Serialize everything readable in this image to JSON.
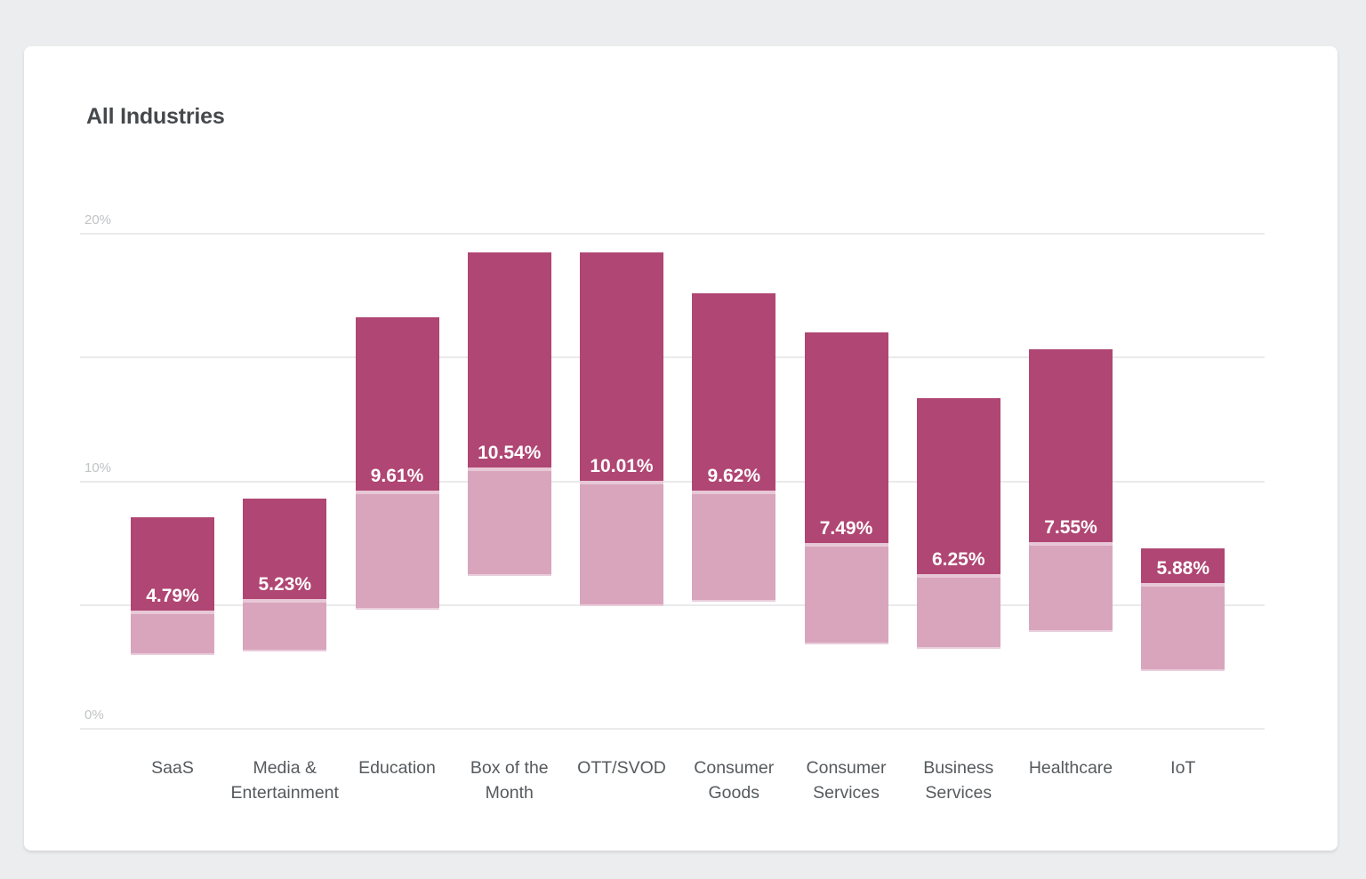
{
  "page": {
    "background": "#ecedee",
    "card_background": "#ffffff"
  },
  "chart_data": {
    "type": "bar",
    "variant": "floating-range-bars-with-midpoint-label",
    "title": "All Industries",
    "xlabel": "",
    "ylabel": "",
    "y_axis": {
      "min": 0,
      "max": 20,
      "unit": "%",
      "ticks": [
        {
          "value": 0,
          "label": "0%"
        },
        {
          "value": 10,
          "label": "10%"
        },
        {
          "value": 20,
          "label": "20%"
        }
      ],
      "gridlines": [
        0,
        5,
        10,
        15,
        20
      ]
    },
    "legend": "none",
    "colors": {
      "upper_segment": "#b04673",
      "lower_segment": "#d8a5bd",
      "segment_divider": "#e8c8d6",
      "value_label_text": "#ffffff",
      "gridline": "#e9eaeb"
    },
    "bars": [
      {
        "category": "SaaS",
        "value": 4.79,
        "value_label": "4.79%",
        "range_high": 8.55,
        "range_low": 2.98
      },
      {
        "category": "Media &\nEntertainment",
        "value": 5.23,
        "value_label": "5.23%",
        "range_high": 9.3,
        "range_low": 3.12
      },
      {
        "category": "Education",
        "value": 9.61,
        "value_label": "9.61%",
        "range_high": 16.63,
        "range_low": 4.81
      },
      {
        "category": "Box of the\nMonth",
        "value": 10.54,
        "value_label": "10.54%",
        "range_high": 19.25,
        "range_low": 6.19
      },
      {
        "category": "OTT/SVOD",
        "value": 10.01,
        "value_label": "10.01%",
        "range_high": 19.25,
        "range_low": 4.97
      },
      {
        "category": "Consumer\nGoods",
        "value": 9.62,
        "value_label": "9.62%",
        "range_high": 17.59,
        "range_low": 5.15
      },
      {
        "category": "Consumer\nServices",
        "value": 7.49,
        "value_label": "7.49%",
        "range_high": 16.01,
        "range_low": 3.41
      },
      {
        "category": "Business\nServices",
        "value": 6.25,
        "value_label": "6.25%",
        "range_high": 13.36,
        "range_low": 3.23
      },
      {
        "category": "Healthcare",
        "value": 7.55,
        "value_label": "7.55%",
        "range_high": 15.33,
        "range_low": 3.91
      },
      {
        "category": "IoT",
        "value": 5.88,
        "value_label": "5.88%",
        "range_high": 7.29,
        "range_low": 2.33
      }
    ]
  }
}
